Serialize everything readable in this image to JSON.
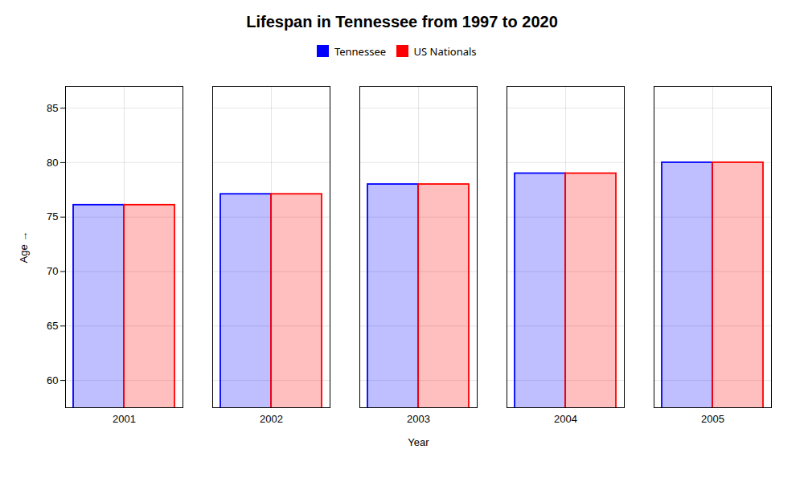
{
  "chart_data": {
    "type": "bar",
    "title": "Lifespan in Tennessee from 1997 to 2020",
    "xlabel": "Year",
    "ylabel": "Age",
    "categories": [
      "2001",
      "2002",
      "2003",
      "2004",
      "2005"
    ],
    "series": [
      {
        "name": "Tennessee",
        "color": "#0000ff",
        "values": [
          76.1,
          77.1,
          78.0,
          79.0,
          80.0
        ]
      },
      {
        "name": "US Nationals",
        "color": "#ff0000",
        "values": [
          76.1,
          77.1,
          78.0,
          79.0,
          80.0
        ]
      }
    ],
    "ylim": [
      57.5,
      87
    ],
    "yticks": [
      60,
      65,
      70,
      75,
      80,
      85
    ],
    "grid": true,
    "legend": "top"
  }
}
